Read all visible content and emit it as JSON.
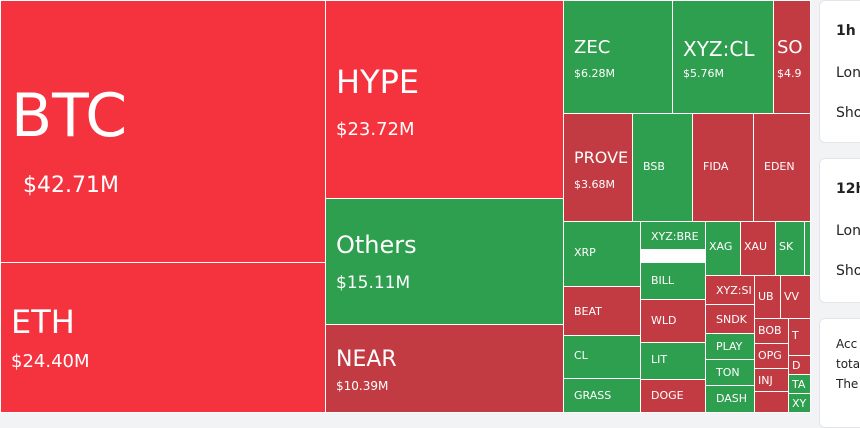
{
  "tiles": [
    {
      "label": "BTC",
      "value": "$42.71M"
    },
    {
      "label": "ETH",
      "value": "$24.40M"
    },
    {
      "label": "HYPE",
      "value": "$23.72M"
    },
    {
      "label": "Others",
      "value": "$15.11M"
    },
    {
      "label": "NEAR",
      "value": "$10.39M"
    },
    {
      "label": "ZEC",
      "value": "$6.28M"
    },
    {
      "label": "XYZ:CL",
      "value": "$5.76M"
    },
    {
      "label": "SO",
      "value": "$4.9"
    },
    {
      "label": "PROVE",
      "value": "$3.68M"
    },
    {
      "label": "BSB"
    },
    {
      "label": "FIDA"
    },
    {
      "label": "EDEN"
    },
    {
      "label": "XRP"
    },
    {
      "label": "XYZ:BRE"
    },
    {
      "label": "XAG"
    },
    {
      "label": "XAU"
    },
    {
      "label": "SK"
    },
    {
      "label": "BILL"
    },
    {
      "label": "BEAT"
    },
    {
      "label": "WLD"
    },
    {
      "label": "XYZ:SI"
    },
    {
      "label": "SNDK"
    },
    {
      "label": "PLAY"
    },
    {
      "label": "TON"
    },
    {
      "label": "DASH"
    },
    {
      "label": "CL"
    },
    {
      "label": "LIT"
    },
    {
      "label": "GRASS"
    },
    {
      "label": "DOGE"
    },
    {
      "label": "UB"
    },
    {
      "label": "VV"
    },
    {
      "label": "BOB"
    },
    {
      "label": "T"
    },
    {
      "label": "OPG"
    },
    {
      "label": "D"
    },
    {
      "label": "INJ"
    },
    {
      "label": "TA"
    },
    {
      "label": "XY"
    }
  ],
  "cards": [
    {
      "title": "1h",
      "lines": [
        "Lon",
        "Sho"
      ]
    },
    {
      "title": "12h",
      "lines": [
        "Lon",
        "Sho"
      ]
    },
    {
      "lines": [
        "Acc",
        "tota",
        "The"
      ]
    }
  ]
}
